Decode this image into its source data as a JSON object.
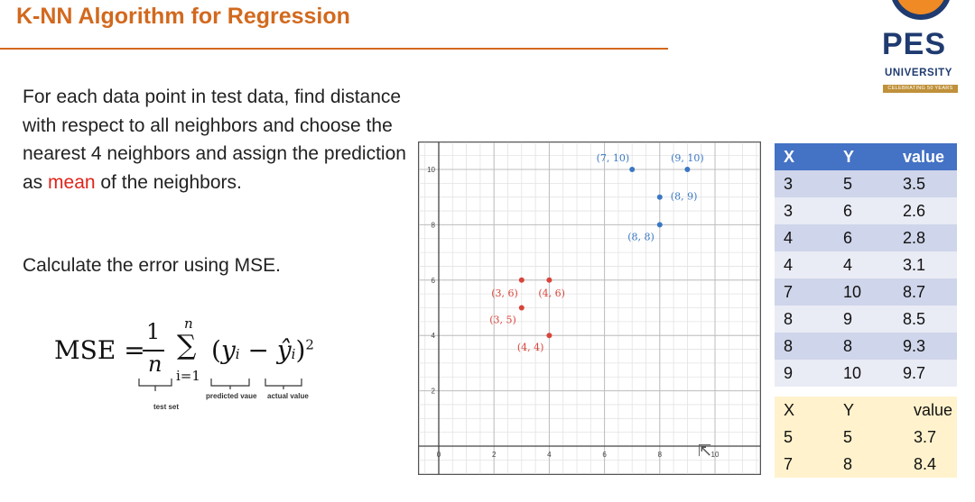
{
  "header": {
    "title": "K-NN Algorithm for Regression"
  },
  "logo": {
    "name": "PES",
    "subtitle": "UNIVERSITY",
    "tagline": "CELEBRATING 50 YEARS"
  },
  "content": {
    "paragraph_before": "For each data point in test data, find distance with respect to all neighbors and choose the nearest 4 neighbors and assign the prediction as ",
    "paragraph_highlight": "mean",
    "paragraph_after": " of the neighbors.",
    "mse_instruction": "Calculate the error using MSE."
  },
  "formula": {
    "lhs": "MSE =",
    "numerator": "1",
    "denominator": "n",
    "sum_upper": "n",
    "sum_lower": "i=1",
    "body": "(y",
    "label_test_set": "test set",
    "label_predicted": "predicted vaue",
    "label_actual": "actual value"
  },
  "chart_data": {
    "type": "scatter",
    "xlim": [
      -1,
      11
    ],
    "ylim": [
      -1,
      11
    ],
    "x_ticks": [
      "0",
      "2",
      "4",
      "6",
      "8",
      "10"
    ],
    "y_ticks": [
      "2",
      "4",
      "6",
      "8",
      "10"
    ],
    "grid": true,
    "series": [
      {
        "color": "#3a78c4",
        "points": [
          {
            "x": 7,
            "y": 10,
            "label": "(7, 10)"
          },
          {
            "x": 9,
            "y": 10,
            "label": "(9, 10)"
          },
          {
            "x": 8,
            "y": 9,
            "label": "(8, 9)"
          },
          {
            "x": 8,
            "y": 8,
            "label": "(8, 8)"
          }
        ]
      },
      {
        "color": "#d9443a",
        "points": [
          {
            "x": 3,
            "y": 6,
            "label": "(3, 6)"
          },
          {
            "x": 4,
            "y": 6,
            "label": "(4, 6)"
          },
          {
            "x": 3,
            "y": 5,
            "label": "(3, 5)"
          },
          {
            "x": 4,
            "y": 4,
            "label": "(4, 4)"
          }
        ]
      }
    ]
  },
  "training_table": {
    "headers": [
      "X",
      "Y",
      "value"
    ],
    "rows": [
      [
        "3",
        "5",
        "3.5"
      ],
      [
        "3",
        "6",
        "2.6"
      ],
      [
        "4",
        "6",
        "2.8"
      ],
      [
        "4",
        "4",
        "3.1"
      ],
      [
        "7",
        "10",
        "8.7"
      ],
      [
        "8",
        "9",
        "8.5"
      ],
      [
        "8",
        "8",
        "9.3"
      ],
      [
        "9",
        "10",
        "9.7"
      ]
    ]
  },
  "test_table": {
    "headers": [
      "X",
      "Y",
      "value"
    ],
    "rows": [
      [
        "5",
        "5",
        "3.7"
      ],
      [
        "7",
        "8",
        "8.4"
      ]
    ]
  },
  "colors": {
    "title": "#d2691e",
    "highlight": "#e0241b",
    "table_header": "#4472c4",
    "test_table_bg": "#fff2cc"
  }
}
